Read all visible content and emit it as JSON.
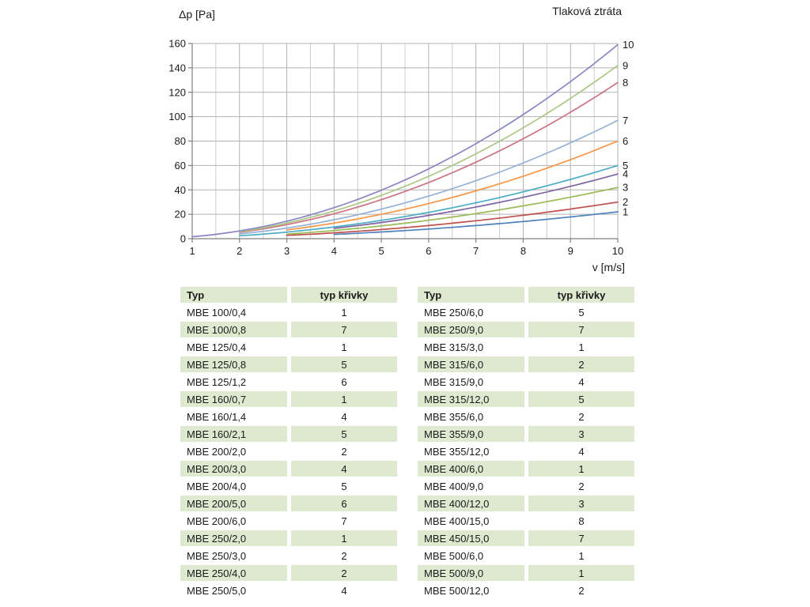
{
  "chart": {
    "title": "Tlaková ztráta",
    "y_axis_title": "Δp [Pa]",
    "x_axis_title": "v [m/s]"
  },
  "chart_data": {
    "type": "line",
    "title": "Tlaková ztráta",
    "xlabel": "v [m/s]",
    "ylabel": "Δp [Pa]",
    "xlim": [
      1,
      10
    ],
    "ylim": [
      0,
      160
    ],
    "x_ticks": [
      1,
      2,
      3,
      4,
      5,
      6,
      7,
      8,
      9,
      10
    ],
    "x_minor_ticks": [
      1.5,
      2.5,
      3.5,
      4.5,
      5.5,
      6.5,
      7.5,
      8.5,
      9.5
    ],
    "y_ticks": [
      0,
      20,
      40,
      60,
      80,
      100,
      120,
      140,
      160
    ],
    "grid": true,
    "legend_position": "right-end-labels",
    "series": [
      {
        "label": "1",
        "color": "#4F81BD",
        "k": 0.22,
        "x": [
          4,
          5,
          6,
          7,
          8,
          9,
          10
        ],
        "y": [
          3.5,
          5.5,
          7.9,
          10.8,
          14.1,
          17.8,
          22
        ]
      },
      {
        "label": "2",
        "color": "#C0504D",
        "k": 0.3,
        "x": [
          3,
          4,
          5,
          6,
          7,
          8,
          9,
          10
        ],
        "y": [
          2.7,
          4.8,
          7.5,
          10.8,
          14.7,
          19.2,
          24.3,
          30
        ]
      },
      {
        "label": "3",
        "color": "#9BBB59",
        "k": 0.42,
        "x": [
          3,
          4,
          5,
          6,
          7,
          8,
          9,
          10
        ],
        "y": [
          3.8,
          6.7,
          10.5,
          15.1,
          20.6,
          26.9,
          34.0,
          42
        ]
      },
      {
        "label": "4",
        "color": "#8064A2",
        "k": 0.53,
        "x": [
          4,
          5,
          6,
          7,
          8,
          9,
          10
        ],
        "y": [
          8.5,
          13.3,
          19.1,
          26.0,
          33.9,
          42.9,
          53
        ]
      },
      {
        "label": "5",
        "color": "#4BACC6",
        "k": 0.6,
        "x": [
          2,
          3,
          4,
          5,
          6,
          7,
          8,
          9,
          10
        ],
        "y": [
          2.4,
          5.4,
          9.6,
          15.0,
          21.6,
          29.4,
          38.4,
          48.6,
          60
        ]
      },
      {
        "label": "6",
        "color": "#F79646",
        "k": 0.8,
        "x": [
          3,
          4,
          5,
          6,
          7,
          8,
          9,
          10
        ],
        "y": [
          7.2,
          12.8,
          20.0,
          28.8,
          39.2,
          51.2,
          64.8,
          80
        ]
      },
      {
        "label": "7",
        "color": "#95B3D7",
        "k": 0.97,
        "x": [
          2,
          3,
          4,
          5,
          6,
          7,
          8,
          9,
          10
        ],
        "y": [
          3.9,
          8.7,
          15.5,
          24.3,
          34.9,
          47.5,
          62.1,
          78.6,
          97
        ]
      },
      {
        "label": "8",
        "color": "#CC7484",
        "k": 1.28,
        "x": [
          2,
          3,
          4,
          5,
          6,
          7,
          8,
          9,
          10
        ],
        "y": [
          5.1,
          11.5,
          20.5,
          32.0,
          46.1,
          62.7,
          81.9,
          103.7,
          128
        ]
      },
      {
        "label": "9",
        "color": "#ABC783",
        "k": 1.42,
        "x": [
          2,
          3,
          4,
          5,
          6,
          7,
          8,
          9,
          10
        ],
        "y": [
          5.7,
          12.8,
          22.7,
          35.5,
          51.1,
          69.6,
          90.9,
          115.0,
          142
        ]
      },
      {
        "label": "10",
        "color": "#8A87C3",
        "k": 1.59,
        "x": [
          1,
          2,
          3,
          4,
          5,
          6,
          7,
          8,
          9,
          10
        ],
        "y": [
          1.6,
          6.4,
          14.3,
          25.4,
          39.8,
          57.2,
          77.9,
          101.8,
          128.8,
          159
        ]
      }
    ],
    "grid_colors": {
      "major": "#b2b2b2",
      "minor": "#cdcdcd",
      "axis": "#7f7f7f"
    }
  },
  "tables": {
    "left": {
      "headers": [
        "Typ",
        "typ křivky"
      ],
      "rows": [
        [
          "MBE 100/0,4",
          "1"
        ],
        [
          "MBE 100/0,8",
          "7"
        ],
        [
          "MBE 125/0,4",
          "1"
        ],
        [
          "MBE 125/0,8",
          "5"
        ],
        [
          "MBE 125/1,2",
          "6"
        ],
        [
          "MBE 160/0,7",
          "1"
        ],
        [
          "MBE 160/1,4",
          "4"
        ],
        [
          "MBE 160/2,1",
          "5"
        ],
        [
          "MBE 200/2,0",
          "2"
        ],
        [
          "MBE 200/3,0",
          "4"
        ],
        [
          "MBE 200/4,0",
          "5"
        ],
        [
          "MBE 200/5,0",
          "6"
        ],
        [
          "MBE 200/6,0",
          "7"
        ],
        [
          "MBE 250/2,0",
          "1"
        ],
        [
          "MBE 250/3,0",
          "2"
        ],
        [
          "MBE 250/4,0",
          "2"
        ],
        [
          "MBE 250/5,0",
          "4"
        ]
      ]
    },
    "right": {
      "headers": [
        "Typ",
        "typ křivky"
      ],
      "rows": [
        [
          "MBE 250/6,0",
          "5"
        ],
        [
          "MBE 250/9,0",
          "7"
        ],
        [
          "MBE 315/3,0",
          "1"
        ],
        [
          "MBE 315/6,0",
          "2"
        ],
        [
          "MBE 315/9,0",
          "4"
        ],
        [
          "MBE 315/12,0",
          "5"
        ],
        [
          "MBE 355/6,0",
          "2"
        ],
        [
          "MBE 355/9,0",
          "3"
        ],
        [
          "MBE 355/12,0",
          "4"
        ],
        [
          "MBE 400/6,0",
          "1"
        ],
        [
          "MBE 400/9,0",
          "2"
        ],
        [
          "MBE 400/12,0",
          "3"
        ],
        [
          "MBE 400/15,0",
          "8"
        ],
        [
          "MBE 450/15,0",
          "7"
        ],
        [
          "MBE 500/6,0",
          "1"
        ],
        [
          "MBE 500/9,0",
          "1"
        ],
        [
          "MBE 500/12,0",
          "2"
        ]
      ]
    },
    "row_green": "#dee9d0"
  }
}
